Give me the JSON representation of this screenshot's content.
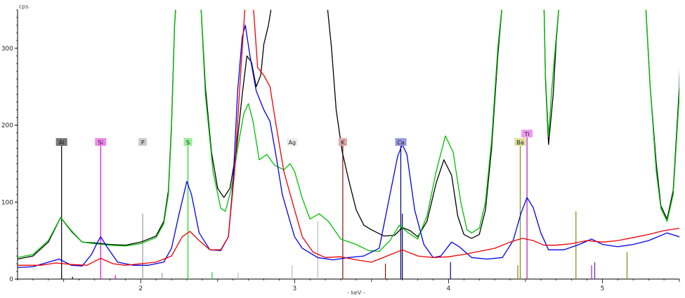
{
  "chart_data": {
    "type": "line",
    "y_unit": "cps",
    "xlabel": "- keV -",
    "xlim": [
      1.2,
      5.5
    ],
    "ylim": [
      0,
      350
    ],
    "x_ticks": [
      2,
      3,
      4,
      5
    ],
    "y_ticks": [
      0,
      100,
      200,
      300
    ],
    "grid": false,
    "series": [
      {
        "color": "#000000",
        "points": [
          [
            1.2,
            26
          ],
          [
            1.3,
            30
          ],
          [
            1.4,
            48
          ],
          [
            1.48,
            80
          ],
          [
            1.55,
            62
          ],
          [
            1.62,
            48
          ],
          [
            1.7,
            47
          ],
          [
            1.8,
            45
          ],
          [
            1.9,
            44
          ],
          [
            2.0,
            48
          ],
          [
            2.1,
            56
          ],
          [
            2.15,
            75
          ],
          [
            2.18,
            115
          ],
          [
            2.2,
            200
          ],
          [
            2.22,
            330
          ],
          [
            2.23,
            360
          ],
          [
            2.39,
            360
          ],
          [
            2.42,
            250
          ],
          [
            2.46,
            165
          ],
          [
            2.5,
            118
          ],
          [
            2.54,
            106
          ],
          [
            2.58,
            118
          ],
          [
            2.62,
            165
          ],
          [
            2.66,
            240
          ],
          [
            2.69,
            290
          ],
          [
            2.72,
            282
          ],
          [
            2.75,
            250
          ],
          [
            2.78,
            265
          ],
          [
            2.8,
            305
          ],
          [
            2.83,
            330
          ],
          [
            2.85,
            355
          ],
          [
            2.89,
            360
          ],
          [
            3.21,
            360
          ],
          [
            3.24,
            300
          ],
          [
            3.27,
            220
          ],
          [
            3.31,
            165
          ],
          [
            3.35,
            130
          ],
          [
            3.4,
            90
          ],
          [
            3.45,
            70
          ],
          [
            3.5,
            64
          ],
          [
            3.58,
            56
          ],
          [
            3.65,
            57
          ],
          [
            3.7,
            67
          ],
          [
            3.75,
            63
          ],
          [
            3.8,
            55
          ],
          [
            3.86,
            75
          ],
          [
            3.92,
            125
          ],
          [
            3.97,
            155
          ],
          [
            4.02,
            135
          ],
          [
            4.06,
            82
          ],
          [
            4.1,
            58
          ],
          [
            4.15,
            53
          ],
          [
            4.2,
            58
          ],
          [
            4.24,
            90
          ],
          [
            4.28,
            170
          ],
          [
            4.32,
            290
          ],
          [
            4.35,
            360
          ],
          [
            4.62,
            360
          ],
          [
            4.63,
            260
          ],
          [
            4.65,
            175
          ],
          [
            4.68,
            240
          ],
          [
            4.7,
            310
          ],
          [
            4.72,
            360
          ],
          [
            5.28,
            360
          ],
          [
            5.31,
            250
          ],
          [
            5.35,
            150
          ],
          [
            5.38,
            95
          ],
          [
            5.42,
            78
          ],
          [
            5.46,
            115
          ],
          [
            5.5,
            250
          ],
          [
            5.51,
            330
          ]
        ]
      },
      {
        "color": "#00c000",
        "points": [
          [
            1.2,
            28
          ],
          [
            1.3,
            32
          ],
          [
            1.4,
            50
          ],
          [
            1.48,
            80
          ],
          [
            1.55,
            63
          ],
          [
            1.62,
            48
          ],
          [
            1.7,
            46
          ],
          [
            1.8,
            44
          ],
          [
            1.9,
            43
          ],
          [
            2.0,
            46
          ],
          [
            2.1,
            54
          ],
          [
            2.15,
            72
          ],
          [
            2.18,
            110
          ],
          [
            2.2,
            195
          ],
          [
            2.22,
            330
          ],
          [
            2.23,
            360
          ],
          [
            2.39,
            360
          ],
          [
            2.42,
            240
          ],
          [
            2.47,
            140
          ],
          [
            2.52,
            92
          ],
          [
            2.55,
            88
          ],
          [
            2.59,
            118
          ],
          [
            2.63,
            170
          ],
          [
            2.67,
            215
          ],
          [
            2.7,
            228
          ],
          [
            2.73,
            205
          ],
          [
            2.77,
            155
          ],
          [
            2.82,
            162
          ],
          [
            2.87,
            148
          ],
          [
            2.93,
            142
          ],
          [
            2.97,
            150
          ],
          [
            3.0,
            140
          ],
          [
            3.05,
            105
          ],
          [
            3.1,
            78
          ],
          [
            3.16,
            85
          ],
          [
            3.22,
            75
          ],
          [
            3.3,
            52
          ],
          [
            3.4,
            45
          ],
          [
            3.48,
            37
          ],
          [
            3.55,
            36
          ],
          [
            3.62,
            50
          ],
          [
            3.68,
            70
          ],
          [
            3.74,
            60
          ],
          [
            3.8,
            52
          ],
          [
            3.86,
            82
          ],
          [
            3.92,
            140
          ],
          [
            3.98,
            186
          ],
          [
            4.03,
            165
          ],
          [
            4.08,
            100
          ],
          [
            4.12,
            64
          ],
          [
            4.15,
            60
          ],
          [
            4.2,
            66
          ],
          [
            4.24,
            100
          ],
          [
            4.28,
            180
          ],
          [
            4.32,
            300
          ],
          [
            4.35,
            360
          ],
          [
            4.62,
            360
          ],
          [
            4.63,
            265
          ],
          [
            4.65,
            185
          ],
          [
            4.67,
            245
          ],
          [
            4.7,
            315
          ],
          [
            4.72,
            360
          ],
          [
            5.28,
            360
          ],
          [
            5.31,
            250
          ],
          [
            5.35,
            140
          ],
          [
            5.38,
            92
          ],
          [
            5.42,
            75
          ],
          [
            5.46,
            110
          ],
          [
            5.5,
            240
          ],
          [
            5.51,
            325
          ]
        ]
      },
      {
        "color": "#0000ee",
        "points": [
          [
            1.2,
            15
          ],
          [
            1.3,
            16
          ],
          [
            1.4,
            22
          ],
          [
            1.47,
            26
          ],
          [
            1.55,
            18
          ],
          [
            1.62,
            17
          ],
          [
            1.68,
            32
          ],
          [
            1.72,
            48
          ],
          [
            1.74,
            55
          ],
          [
            1.78,
            42
          ],
          [
            1.85,
            22
          ],
          [
            1.95,
            18
          ],
          [
            2.05,
            18
          ],
          [
            2.15,
            22
          ],
          [
            2.2,
            40
          ],
          [
            2.25,
            85
          ],
          [
            2.3,
            127
          ],
          [
            2.33,
            110
          ],
          [
            2.38,
            60
          ],
          [
            2.45,
            38
          ],
          [
            2.52,
            37
          ],
          [
            2.57,
            55
          ],
          [
            2.6,
            125
          ],
          [
            2.63,
            245
          ],
          [
            2.66,
            315
          ],
          [
            2.68,
            330
          ],
          [
            2.71,
            290
          ],
          [
            2.75,
            245
          ],
          [
            2.8,
            220
          ],
          [
            2.84,
            205
          ],
          [
            2.88,
            160
          ],
          [
            2.92,
            110
          ],
          [
            2.97,
            75
          ],
          [
            3.0,
            55
          ],
          [
            3.05,
            40
          ],
          [
            3.15,
            28
          ],
          [
            3.25,
            25
          ],
          [
            3.35,
            28
          ],
          [
            3.45,
            30
          ],
          [
            3.55,
            40
          ],
          [
            3.62,
            110
          ],
          [
            3.67,
            160
          ],
          [
            3.7,
            175
          ],
          [
            3.73,
            162
          ],
          [
            3.78,
            90
          ],
          [
            3.84,
            45
          ],
          [
            3.9,
            28
          ],
          [
            3.95,
            30
          ],
          [
            4.02,
            48
          ],
          [
            4.07,
            42
          ],
          [
            4.15,
            28
          ],
          [
            4.25,
            26
          ],
          [
            4.35,
            28
          ],
          [
            4.42,
            50
          ],
          [
            4.47,
            85
          ],
          [
            4.51,
            106
          ],
          [
            4.55,
            93
          ],
          [
            4.6,
            60
          ],
          [
            4.65,
            38
          ],
          [
            4.75,
            38
          ],
          [
            4.85,
            45
          ],
          [
            4.93,
            52
          ],
          [
            5.0,
            45
          ],
          [
            5.1,
            42
          ],
          [
            5.2,
            45
          ],
          [
            5.3,
            50
          ],
          [
            5.42,
            60
          ],
          [
            5.5,
            55
          ],
          [
            5.51,
            50
          ]
        ]
      },
      {
        "color": "#ee0000",
        "points": [
          [
            1.2,
            18
          ],
          [
            1.35,
            18
          ],
          [
            1.45,
            21
          ],
          [
            1.55,
            19
          ],
          [
            1.65,
            18
          ],
          [
            1.74,
            27
          ],
          [
            1.82,
            20
          ],
          [
            1.9,
            18
          ],
          [
            2.0,
            20
          ],
          [
            2.1,
            22
          ],
          [
            2.2,
            30
          ],
          [
            2.27,
            55
          ],
          [
            2.32,
            62
          ],
          [
            2.38,
            50
          ],
          [
            2.45,
            38
          ],
          [
            2.52,
            38
          ],
          [
            2.57,
            55
          ],
          [
            2.61,
            140
          ],
          [
            2.65,
            270
          ],
          [
            2.68,
            360
          ],
          [
            2.73,
            360
          ],
          [
            2.76,
            275
          ],
          [
            2.8,
            265
          ],
          [
            2.84,
            250
          ],
          [
            2.88,
            200
          ],
          [
            2.93,
            140
          ],
          [
            3.0,
            90
          ],
          [
            3.05,
            55
          ],
          [
            3.12,
            35
          ],
          [
            3.2,
            28
          ],
          [
            3.3,
            29
          ],
          [
            3.4,
            25
          ],
          [
            3.5,
            22
          ],
          [
            3.6,
            30
          ],
          [
            3.7,
            38
          ],
          [
            3.8,
            30
          ],
          [
            3.9,
            28
          ],
          [
            4.0,
            29
          ],
          [
            4.1,
            32
          ],
          [
            4.2,
            36
          ],
          [
            4.3,
            40
          ],
          [
            4.4,
            48
          ],
          [
            4.48,
            53
          ],
          [
            4.55,
            50
          ],
          [
            4.62,
            44
          ],
          [
            4.7,
            44
          ],
          [
            4.8,
            46
          ],
          [
            4.9,
            50
          ],
          [
            5.0,
            48
          ],
          [
            5.1,
            50
          ],
          [
            5.2,
            54
          ],
          [
            5.3,
            58
          ],
          [
            5.4,
            63
          ],
          [
            5.5,
            66
          ],
          [
            5.51,
            66
          ]
        ]
      }
    ],
    "element_markers": [
      {
        "symbol": "Al",
        "kev": 1.486,
        "color": "#000000",
        "label_bg": "#777777",
        "height": 175
      },
      {
        "symbol": "Si",
        "kev": 1.74,
        "color": "#ee00ee",
        "label_bg": "#ee88ee",
        "height": 175
      },
      {
        "symbol": "P",
        "kev": 2.013,
        "color": "#999999",
        "label_bg": "#cccccc",
        "height": 175
      },
      {
        "symbol": "S",
        "kev": 2.307,
        "color": "#22cc22",
        "label_bg": "#99ee99",
        "height": 175
      },
      {
        "symbol": "Ag",
        "kev": 2.984,
        "color": "#bbbbbb",
        "label_bg": "#eeeeee",
        "height": 175
      },
      {
        "symbol": "K",
        "kev": 3.313,
        "color": "#881111",
        "label_bg": "#ddaaaa",
        "height": 175
      },
      {
        "symbol": "Ca",
        "kev": 3.69,
        "color": "#000066",
        "label_bg": "#9999dd",
        "height": 175
      },
      {
        "symbol": "Ba",
        "kev": 4.466,
        "color": "#888811",
        "label_bg": "#dddd99",
        "height": 175
      },
      {
        "symbol": "Ti",
        "kev": 4.51,
        "color": "#aa22aa",
        "label_bg": "#ee99ee",
        "height": 186
      }
    ],
    "stick_lines": [
      {
        "kev": 1.486,
        "height": 175,
        "color": "#000000"
      },
      {
        "kev": 1.557,
        "height": 3,
        "color": "#000000"
      },
      {
        "kev": 1.74,
        "height": 175,
        "color": "#ee00ee"
      },
      {
        "kev": 1.836,
        "height": 5,
        "color": "#ee00ee"
      },
      {
        "kev": 2.013,
        "height": 85,
        "color": "#999999"
      },
      {
        "kev": 2.139,
        "height": 8,
        "color": "#999999"
      },
      {
        "kev": 2.307,
        "height": 175,
        "color": "#22cc22"
      },
      {
        "kev": 2.464,
        "height": 9,
        "color": "#22cc22"
      },
      {
        "kev": 2.633,
        "height": 8,
        "color": "#bbbbbb"
      },
      {
        "kev": 2.984,
        "height": 18,
        "color": "#bbbbbb"
      },
      {
        "kev": 3.151,
        "height": 75,
        "color": "#bbbbbb"
      },
      {
        "kev": 3.313,
        "height": 175,
        "color": "#881111"
      },
      {
        "kev": 3.59,
        "height": 20,
        "color": "#881111"
      },
      {
        "kev": 3.69,
        "height": 175,
        "color": "#000066"
      },
      {
        "kev": 3.7,
        "height": 85,
        "color": "#000066"
      },
      {
        "kev": 4.013,
        "height": 22,
        "color": "#0000aa"
      },
      {
        "kev": 4.466,
        "height": 175,
        "color": "#888811"
      },
      {
        "kev": 4.45,
        "height": 18,
        "color": "#888811"
      },
      {
        "kev": 4.51,
        "height": 186,
        "color": "#aa22aa"
      },
      {
        "kev": 4.828,
        "height": 88,
        "color": "#888811"
      },
      {
        "kev": 4.93,
        "height": 18,
        "color": "#aa22aa"
      },
      {
        "kev": 4.95,
        "height": 22,
        "color": "#4433aa"
      },
      {
        "kev": 5.16,
        "height": 35,
        "color": "#888811"
      }
    ]
  }
}
